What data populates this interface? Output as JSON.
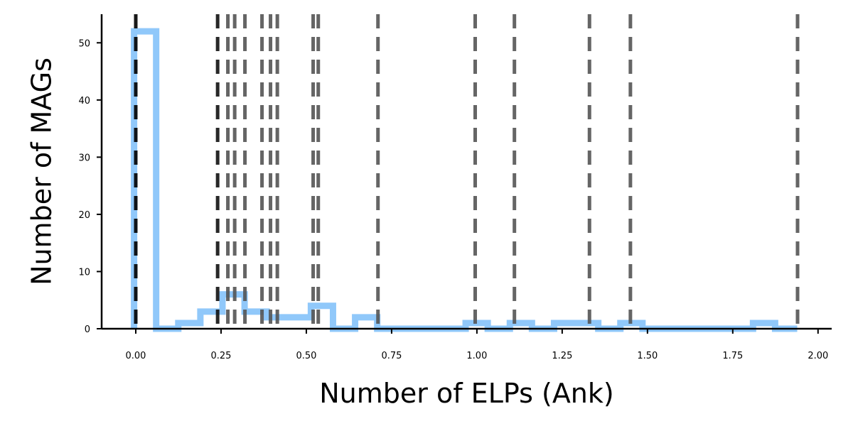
{
  "chart_data": {
    "type": "histogram",
    "xlabel": "Number of ELPs (Ank)",
    "ylabel": "Number of MAGs",
    "xlim": [
      -0.1,
      2.04
    ],
    "ylim": [
      0,
      55
    ],
    "xticks": [
      0.0,
      0.25,
      0.5,
      0.75,
      1.0,
      1.25,
      1.5,
      1.75,
      2.0
    ],
    "xtick_labels": [
      "0.00",
      "0.25",
      "0.50",
      "0.75",
      "1.00",
      "1.25",
      "1.50",
      "1.75",
      "2.00"
    ],
    "yticks": [
      0,
      10,
      20,
      30,
      40,
      50
    ],
    "ytick_labels": [
      "0",
      "10",
      "20",
      "30",
      "40",
      "50"
    ],
    "grid": false,
    "legend": "none",
    "histogram": {
      "color": "#90c8fa",
      "style": "step",
      "bin_edges": [
        -0.005,
        0.0598,
        0.1246,
        0.1894,
        0.2542,
        0.319,
        0.3838,
        0.4486,
        0.5134,
        0.5782,
        0.643,
        0.7078,
        0.7726,
        0.8374,
        0.9022,
        0.967,
        1.0318,
        1.0966,
        1.1614,
        1.2262,
        1.291,
        1.3558,
        1.4206,
        1.4854,
        1.5502,
        1.615,
        1.6798,
        1.7446,
        1.8094,
        1.8742,
        1.939
      ],
      "counts": [
        52,
        0,
        1,
        3,
        6,
        3,
        2,
        2,
        4,
        0,
        2,
        0,
        0,
        0,
        0,
        1,
        0,
        1,
        0,
        1,
        1,
        0,
        1,
        0,
        0,
        0,
        0,
        0,
        1,
        0
      ]
    },
    "vertical_lines": [
      {
        "x": 0.0,
        "color": "#000000"
      },
      {
        "x": 0.24,
        "color": "#111111"
      },
      {
        "x": 0.27,
        "color": "#555555"
      },
      {
        "x": 0.29,
        "color": "#555555"
      },
      {
        "x": 0.32,
        "color": "#555555"
      },
      {
        "x": 0.37,
        "color": "#555555"
      },
      {
        "x": 0.395,
        "color": "#555555"
      },
      {
        "x": 0.415,
        "color": "#555555"
      },
      {
        "x": 0.52,
        "color": "#555555"
      },
      {
        "x": 0.535,
        "color": "#555555"
      },
      {
        "x": 0.71,
        "color": "#555555"
      },
      {
        "x": 0.995,
        "color": "#555555"
      },
      {
        "x": 1.11,
        "color": "#555555"
      },
      {
        "x": 1.33,
        "color": "#555555"
      },
      {
        "x": 1.45,
        "color": "#555555"
      },
      {
        "x": 1.94,
        "color": "#555555"
      }
    ]
  }
}
